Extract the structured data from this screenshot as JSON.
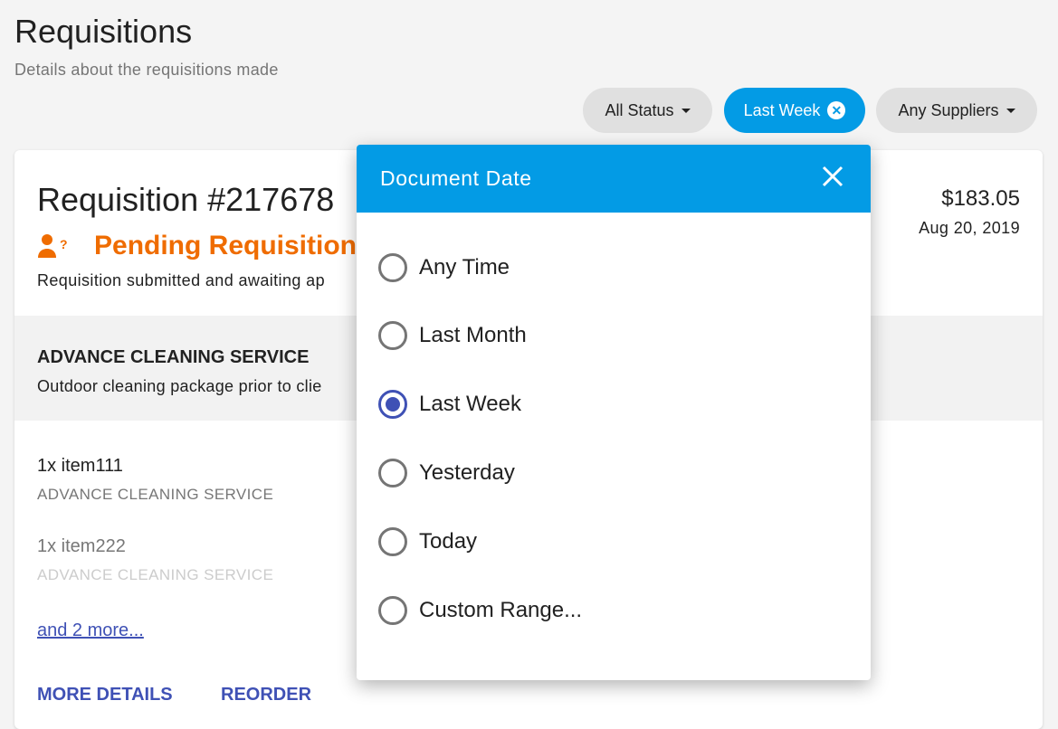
{
  "page": {
    "title": "Requisitions",
    "subtitle": "Details about the requisitions made"
  },
  "filters": {
    "status": "All Status",
    "date": "Last Week",
    "suppliers": "Any Suppliers"
  },
  "colors": {
    "accent": "#039be5",
    "primary": "#3f51b5",
    "pending": "#ef6c00"
  },
  "requisition": {
    "title": "Requisition #217678",
    "status": "Pending Requisition",
    "status_icon": "person-question-icon",
    "status_desc": "Requisition submitted and awaiting ap",
    "price": "$183.05",
    "date": "Aug 20, 2019",
    "supplier": "ADVANCE CLEANING SERVICE",
    "supplier_desc": "Outdoor cleaning package prior to clie",
    "items": [
      {
        "name": "1x item111",
        "supplier": "ADVANCE CLEANING SERVICE"
      },
      {
        "name": "1x item222",
        "supplier": "ADVANCE CLEANING SERVICE"
      }
    ],
    "more": "and 2 more...",
    "actions": {
      "details": "MORE DETAILS",
      "reorder": "REORDER"
    }
  },
  "dialog": {
    "title": "Document Date",
    "selected": "Last Week",
    "options": [
      "Any Time",
      "Last Month",
      "Last Week",
      "Yesterday",
      "Today",
      "Custom Range..."
    ]
  }
}
